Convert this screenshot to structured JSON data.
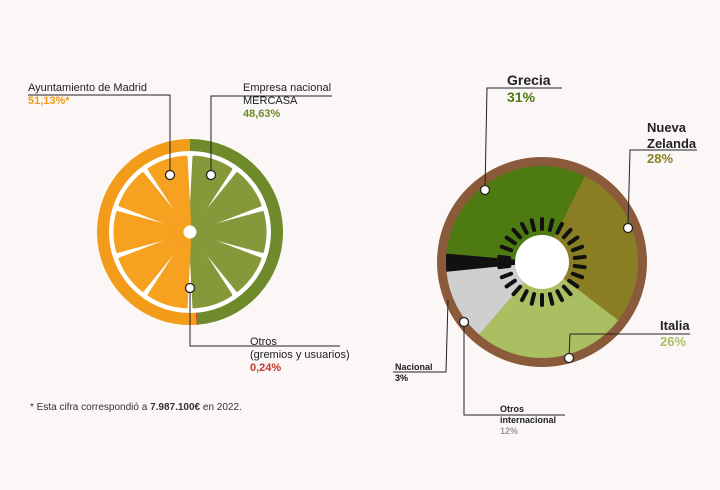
{
  "chart_data": [
    {
      "type": "pie",
      "categories": [
        "Empresa nacional MERCASA",
        "Otros",
        "Ayuntamiento de Madrid"
      ],
      "values": [
        48.63,
        0.24,
        51.13
      ],
      "value_labels": [
        "48,63%",
        "0,24%",
        "51,13%*"
      ],
      "colors": [
        "#6f8a2a",
        "#c0392b",
        "#f39c1a"
      ],
      "annotation": "(gremios y usuarios)"
    },
    {
      "type": "pie",
      "categories": [
        "Grecia",
        "Nueva Zelanda",
        "Italia",
        "Otros internacional",
        "Nacional"
      ],
      "values": [
        31,
        28,
        26,
        12,
        3
      ],
      "value_labels": [
        "31%",
        "28%",
        "26%",
        "12%",
        "3%"
      ],
      "colors": [
        "#4e7a12",
        "#8a7e24",
        "#a9bf62",
        "#cfcfcf",
        "#111111"
      ]
    }
  ],
  "footnote": [
    "* Esta cifra correspondió a ",
    "7.987.100€",
    " en 2022."
  ]
}
